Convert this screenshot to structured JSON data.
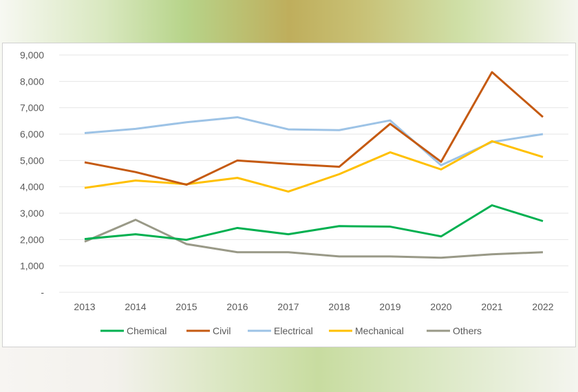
{
  "chart_data": {
    "type": "line",
    "categories": [
      "2013",
      "2014",
      "2015",
      "2016",
      "2017",
      "2018",
      "2019",
      "2020",
      "2021",
      "2022"
    ],
    "ylim": [
      0,
      9000
    ],
    "yticks": [
      0,
      1000,
      2000,
      3000,
      4000,
      5000,
      6000,
      7000,
      8000,
      9000
    ],
    "ytick_labels": [
      "-",
      "1,000",
      "2,000",
      "3,000",
      "4,000",
      "5,000",
      "6,000",
      "7,000",
      "8,000",
      "9,000"
    ],
    "grid": true,
    "legend": "bottom",
    "series": [
      {
        "name": "Chemical",
        "color": "#00b050",
        "values": [
          2020,
          2200,
          1990,
          2440,
          2200,
          2510,
          2490,
          2120,
          3300,
          2700
        ]
      },
      {
        "name": "Civil",
        "color": "#c55a11",
        "values": [
          4930,
          4560,
          4080,
          5000,
          4870,
          4760,
          6390,
          4950,
          8350,
          6650
        ]
      },
      {
        "name": "Electrical",
        "color": "#9dc3e6",
        "values": [
          6040,
          6200,
          6450,
          6640,
          6180,
          6150,
          6520,
          4820,
          5700,
          6000
        ]
      },
      {
        "name": "Mechanical",
        "color": "#ffc000",
        "values": [
          3960,
          4240,
          4100,
          4340,
          3820,
          4480,
          5310,
          4660,
          5730,
          5130
        ]
      },
      {
        "name": "Others",
        "color": "#999987",
        "values": [
          1920,
          2750,
          1830,
          1520,
          1520,
          1360,
          1360,
          1310,
          1440,
          1520
        ]
      }
    ]
  }
}
